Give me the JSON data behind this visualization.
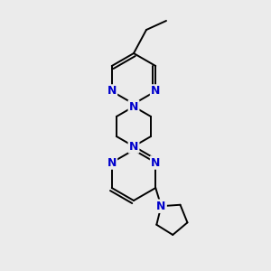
{
  "background_color": "#ebebeb",
  "bond_color": "#000000",
  "nitrogen_color": "#0000cc",
  "line_width": 1.4,
  "figsize": [
    3.0,
    3.0
  ],
  "dpi": 100,
  "xlim": [
    0,
    300
  ],
  "ylim": [
    0,
    300
  ],
  "font_size": 9
}
